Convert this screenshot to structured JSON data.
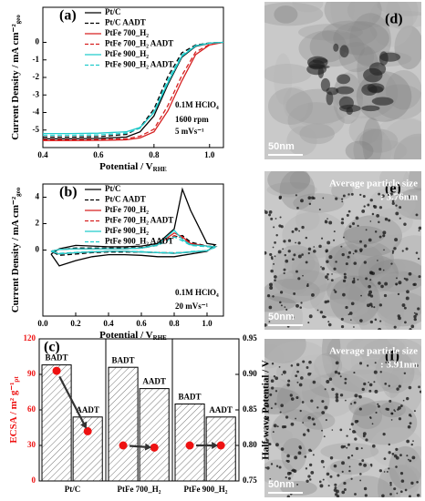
{
  "chart_data": [
    {
      "type": "line",
      "panel": "(a)",
      "legend": "upper left",
      "x": [
        0.4,
        0.5,
        0.6,
        0.7,
        0.75,
        0.8,
        0.85,
        0.9,
        0.95,
        1.0,
        1.05
      ],
      "series": [
        {
          "name": "Pt/C",
          "color": "#000000",
          "linestyle": "solid",
          "values": [
            -5.5,
            -5.5,
            -5.48,
            -5.4,
            -5.1,
            -4.2,
            -2.4,
            -0.85,
            -0.23,
            -0.05,
            0
          ]
        },
        {
          "name": "Pt/C AADT",
          "color": "#000000",
          "linestyle": "dashed",
          "values": [
            -5.4,
            -5.4,
            -5.38,
            -5.25,
            -4.85,
            -3.8,
            -1.95,
            -0.6,
            -0.15,
            -0.03,
            0
          ]
        },
        {
          "name": "PtFe 700_H₂",
          "color": "#d62020",
          "linestyle": "solid",
          "values": [
            -5.6,
            -5.6,
            -5.59,
            -5.56,
            -5.45,
            -5.1,
            -3.9,
            -2.2,
            -0.7,
            -0.15,
            0
          ]
        },
        {
          "name": "PtFe 700_H₂ AADT",
          "color": "#d62020",
          "linestyle": "dashed",
          "values": [
            -5.55,
            -5.55,
            -5.54,
            -5.5,
            -5.35,
            -4.95,
            -3.6,
            -1.9,
            -0.55,
            -0.12,
            0
          ]
        },
        {
          "name": "PtFe 900_H₂",
          "color": "#22cccc",
          "linestyle": "solid",
          "values": [
            -5.2,
            -5.2,
            -5.18,
            -5.1,
            -4.85,
            -4.0,
            -2.3,
            -0.8,
            -0.2,
            -0.04,
            0
          ]
        },
        {
          "name": "PtFe 900_H₂ AADT",
          "color": "#22cccc",
          "linestyle": "dashed",
          "values": [
            -5.3,
            -5.3,
            -5.28,
            -5.18,
            -4.9,
            -3.95,
            -2.15,
            -0.72,
            -0.18,
            -0.04,
            0
          ]
        }
      ],
      "xlim": [
        0.4,
        1.05
      ],
      "xticks": [
        0.4,
        0.6,
        0.8,
        {
          "value": 1,
          "label": "1.0"
        }
      ],
      "ylim": [
        -6,
        2
      ],
      "yticks": [
        -5,
        -4,
        -3,
        -2,
        -1,
        0
      ],
      "xlabel": "Potential / V",
      "xlabel_sub": "RHE",
      "ylabel": "Current Density / mA cm⁻²",
      "ylabel_sub": "geo",
      "annotations": [
        "0.1M HClO₄",
        "1600 rpm",
        "5 mVs⁻¹"
      ]
    },
    {
      "type": "line",
      "panel": "(b)",
      "legend": "upper left",
      "x": [
        0.05,
        0.1,
        0.2,
        0.3,
        0.4,
        0.5,
        0.6,
        0.7,
        0.8,
        0.85,
        0.9,
        1.0,
        1.05,
        1.0,
        0.9,
        0.85,
        0.8,
        0.7,
        0.6,
        0.5,
        0.4,
        0.3,
        0.2,
        0.1,
        0.05
      ],
      "series": [
        {
          "name": "Pt/C",
          "color": "#000000",
          "linestyle": "solid",
          "values": [
            -0.3,
            0.1,
            0.35,
            0.3,
            0.25,
            0.25,
            0.3,
            0.5,
            1.6,
            4.6,
            3.0,
            0.5,
            0.4,
            -0.1,
            -0.3,
            -0.4,
            -0.5,
            -0.5,
            -0.4,
            -0.35,
            -0.35,
            -0.5,
            -0.8,
            -1.2,
            -0.3
          ]
        },
        {
          "name": "Pt/C AADT",
          "color": "#000000",
          "linestyle": "dashed",
          "values": [
            -0.1,
            0.05,
            0.15,
            0.15,
            0.15,
            0.15,
            0.2,
            0.4,
            1.0,
            1.1,
            0.6,
            0.3,
            0.25,
            -0.05,
            -0.15,
            -0.2,
            -0.25,
            -0.2,
            -0.15,
            -0.15,
            -0.15,
            -0.2,
            -0.3,
            -0.4,
            -0.1
          ]
        },
        {
          "name": "PtFe 700_H₂",
          "color": "#d62020",
          "linestyle": "solid",
          "values": [
            -0.1,
            0.05,
            0.1,
            0.1,
            0.1,
            0.1,
            0.15,
            0.4,
            1.3,
            1.0,
            0.5,
            0.3,
            0.25,
            -0.05,
            -0.15,
            -0.2,
            -0.25,
            -0.2,
            -0.15,
            -0.1,
            -0.1,
            -0.15,
            -0.2,
            -0.3,
            -0.1
          ]
        },
        {
          "name": "PtFe 700_H₂ AADT",
          "color": "#d62020",
          "linestyle": "dashed",
          "values": [
            -0.1,
            0.05,
            0.1,
            0.1,
            0.1,
            0.1,
            0.15,
            0.35,
            1.1,
            0.9,
            0.45,
            0.3,
            0.25,
            -0.05,
            -0.15,
            -0.2,
            -0.22,
            -0.18,
            -0.14,
            -0.1,
            -0.1,
            -0.14,
            -0.2,
            -0.28,
            -0.1
          ]
        },
        {
          "name": "PtFe 900_H₂",
          "color": "#22cccc",
          "linestyle": "solid",
          "values": [
            -0.1,
            0.05,
            0.1,
            0.1,
            0.1,
            0.1,
            0.15,
            0.4,
            1.5,
            0.8,
            0.4,
            0.3,
            0.25,
            -0.05,
            -0.15,
            -0.2,
            -0.25,
            -0.2,
            -0.15,
            -0.1,
            -0.1,
            -0.15,
            -0.2,
            -0.3,
            -0.1
          ]
        },
        {
          "name": "PtFe 900_H₂ AADT",
          "color": "#22cccc",
          "linestyle": "dashed",
          "values": [
            -0.1,
            0.05,
            0.1,
            0.1,
            0.1,
            0.1,
            0.15,
            0.35,
            1.0,
            0.7,
            0.35,
            0.25,
            0.2,
            -0.05,
            -0.12,
            -0.18,
            -0.2,
            -0.18,
            -0.12,
            -0.1,
            -0.1,
            -0.12,
            -0.18,
            -0.25,
            -0.1
          ]
        }
      ],
      "xlim": [
        0,
        1.1
      ],
      "xticks": [
        {
          "value": 0,
          "label": "0.0"
        },
        0.2,
        0.4,
        0.6,
        0.8,
        {
          "value": 1,
          "label": "1.0"
        }
      ],
      "ylim": [
        -5,
        5
      ],
      "yticks": [
        0,
        2,
        4
      ],
      "xlabel": "Potential / V",
      "xlabel_sub": "RHE",
      "ylabel": "Current Density / mA cm⁻²",
      "ylabel_sub": "geo",
      "annotations": [
        "0.1M HClO₄",
        "20 mVs⁻¹"
      ]
    },
    {
      "type": "bar",
      "panel": "(c)",
      "categories": [
        "Pt/C",
        "PtFe 700_H₂",
        "PtFe 900_H₂"
      ],
      "series": [
        {
          "name": "BADT",
          "values": [
            98,
            96,
            65
          ]
        },
        {
          "name": "AADT",
          "values": [
            54,
            78,
            54
          ]
        },
        {
          "axis": "y2",
          "color": "#ee1111",
          "values": [
            0.905,
            0.8,
            0.8
          ]
        },
        {
          "axis": "y2",
          "color": "#ee1111",
          "values": [
            0.82,
            0.797,
            0.8
          ]
        }
      ],
      "ylim": [
        0,
        120
      ],
      "yticks": [
        0,
        30,
        60,
        90,
        120
      ],
      "y2lim": [
        0.75,
        0.95
      ],
      "y2ticks": [
        0.75,
        {
          "value": 0.8,
          "label": "0.80"
        },
        0.85,
        {
          "value": 0.9,
          "label": "0.90"
        },
        0.95
      ],
      "ylabel": "ECSA / m² g⁻¹",
      "ylabel_sub": "pt",
      "ylabel_color": "#ee1111",
      "y2label": "Half-wave Potential / V"
    }
  ],
  "images": [
    {
      "label": "(d)",
      "scale": "50nm"
    },
    {
      "label": "(e)",
      "scale": "50nm",
      "caption": [
        "Average particle size",
        ": 3.76nm"
      ]
    },
    {
      "label": "(f)",
      "scale": "50nm",
      "caption": [
        "Average particle size",
        ": 3.91nm"
      ]
    }
  ]
}
